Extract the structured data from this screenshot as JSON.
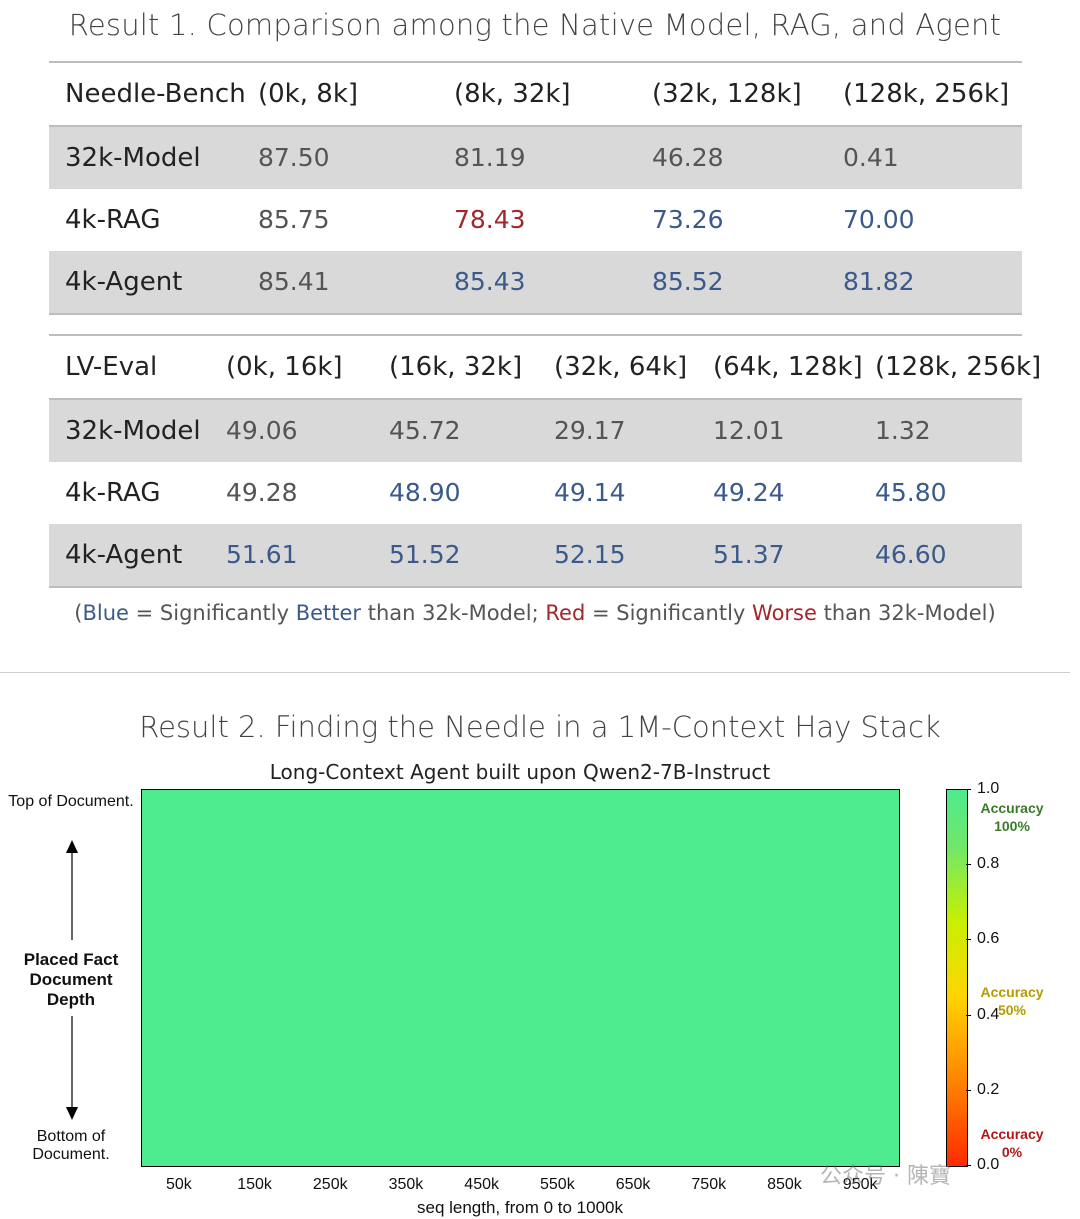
{
  "result1": {
    "title": "Result 1. Comparison among the Native Model, RAG, and Agent",
    "needle_bench": {
      "headers": [
        "Needle-Bench",
        "(0k, 8k]",
        "(8k, 32k]",
        "(32k, 128k]",
        "(128k, 256k]"
      ],
      "rows": [
        {
          "label": "32k-Model",
          "values": [
            "87.50",
            "81.19",
            "46.28",
            "0.41"
          ],
          "styles": [
            "n",
            "n",
            "n",
            "n"
          ]
        },
        {
          "label": "4k-RAG",
          "values": [
            "85.75",
            "78.43",
            "73.26",
            "70.00"
          ],
          "styles": [
            "n",
            "w",
            "b",
            "b"
          ]
        },
        {
          "label": "4k-Agent",
          "values": [
            "85.41",
            "85.43",
            "85.52",
            "81.82"
          ],
          "styles": [
            "n",
            "b",
            "b",
            "b"
          ]
        }
      ]
    },
    "lv_eval": {
      "headers": [
        "LV-Eval",
        "(0k, 16k]",
        "(16k, 32k]",
        "(32k, 64k]",
        "(64k, 128k]",
        "(128k, 256k]"
      ],
      "rows": [
        {
          "label": "32k-Model",
          "values": [
            "49.06",
            "45.72",
            "29.17",
            "12.01",
            "1.32"
          ],
          "styles": [
            "n",
            "n",
            "n",
            "n",
            "n"
          ]
        },
        {
          "label": "4k-RAG",
          "values": [
            "49.28",
            "48.90",
            "49.14",
            "49.24",
            "45.80"
          ],
          "styles": [
            "n",
            "b",
            "b",
            "b",
            "b"
          ]
        },
        {
          "label": "4k-Agent",
          "values": [
            "51.61",
            "51.52",
            "52.15",
            "51.37",
            "46.60"
          ],
          "styles": [
            "b",
            "b",
            "b",
            "b",
            "b"
          ]
        }
      ]
    },
    "legend": {
      "open": "(",
      "blue_word": "Blue",
      "blue_text_1": " = Significantly ",
      "blue_emph": "Better",
      "blue_text_2": " than 32k-Model; ",
      "red_word": "Red",
      "red_text_1": " = Significantly ",
      "red_emph": "Worse",
      "red_text_2": " than 32k-Model)"
    },
    "colors": {
      "better": "#3b5a8c",
      "worse": "#a3262a"
    }
  },
  "result2": {
    "title": "Result 2. Finding the Needle in a 1M-Context Hay Stack",
    "chart_data": {
      "type": "heatmap",
      "title": "Long-Context Agent built upon Qwen2-7B-Instruct",
      "xlabel": "seq length, from 0 to 1000k",
      "x_ticks": [
        "50k",
        "150k",
        "250k",
        "350k",
        "450k",
        "550k",
        "650k",
        "750k",
        "850k",
        "950k"
      ],
      "x_tick_values": [
        50,
        150,
        250,
        350,
        450,
        550,
        650,
        750,
        850,
        950
      ],
      "xlim": [
        0,
        1000
      ],
      "ylabel_top": "Top of Document.",
      "ylabel_mid": [
        "Placed Fact",
        "Document",
        "Depth"
      ],
      "ylabel_bottom": "Bottom of Document.",
      "values_all": 1.0,
      "cell_color": "#4eea8e",
      "colorbar": {
        "ticks": [
          "0.0",
          "0.2",
          "0.4",
          "0.6",
          "0.8",
          "1.0"
        ],
        "tick_values": [
          0.0,
          0.2,
          0.4,
          0.6,
          0.8,
          1.0
        ],
        "range": [
          0,
          1
        ],
        "annotations": [
          {
            "lines": [
              "Accuracy",
              "100%"
            ],
            "value": 1.0,
            "color": "#3a7a28"
          },
          {
            "lines": [
              "Accuracy",
              "50%"
            ],
            "value": 0.5,
            "color": "#b59a00"
          },
          {
            "lines": [
              "Accuracy",
              "0%"
            ],
            "value": 0.0,
            "color": "#b01818"
          }
        ]
      }
    }
  },
  "watermark": "公众号 · 陳寶"
}
